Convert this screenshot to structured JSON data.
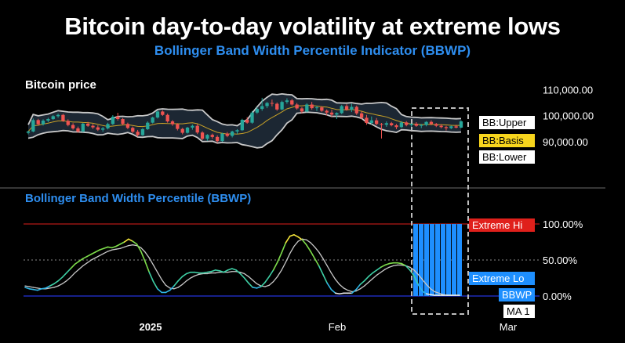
{
  "title": "Bitcoin day-to-day volatility at extreme lows",
  "subtitle": "Bollinger Band Width Percentile Indicator (BBWP)",
  "colors": {
    "background": "#000000",
    "subtitle": "#2e8ef0",
    "bull": "#26a69a",
    "bear": "#ef5350",
    "band_fill": "#1c2733",
    "band_line": "#c8c8c8",
    "basis": "#c9a227",
    "bbwp_panel_label": "#2e8ef0",
    "extreme_hi": "#e0201b",
    "extreme_lo": "#1e8fff",
    "bbwp_bar": "#1e8fff",
    "ma": "#c8c8c8",
    "divider": "#6b6b6b",
    "highlight_box": "#bdbdbd"
  },
  "chart_data": [
    {
      "type": "candlestick",
      "title": "Bitcoin price",
      "y_ticks": [
        "110,000.00",
        "100,000.00",
        "90,000.00"
      ],
      "ylim": [
        83000,
        112000
      ],
      "x_ticks": [
        "2025",
        "Feb",
        "Mar"
      ],
      "legend": [
        "BB:Upper",
        "BB:Basis",
        "BB:Lower"
      ],
      "series": [
        {
          "name": "Bitcoin price",
          "ohlc": [
            [
              93400,
              94200,
              92800,
              93900
            ],
            [
              93900,
              98900,
              93600,
              98300
            ],
            [
              98300,
              98800,
              96200,
              96700
            ],
            [
              96700,
              98600,
              96200,
              98100
            ],
            [
              98100,
              99200,
              97500,
              98700
            ],
            [
              98700,
              100200,
              98300,
              99800
            ],
            [
              99800,
              100800,
              99200,
              100300
            ],
            [
              100300,
              100700,
              97600,
              98000
            ],
            [
              98000,
              98600,
              95900,
              96400
            ],
            [
              96400,
              97100,
              94600,
              95100
            ],
            [
              95100,
              95800,
              93400,
              93900
            ],
            [
              93900,
              97200,
              93600,
              96900
            ],
            [
              96900,
              97600,
              95700,
              96100
            ],
            [
              96100,
              96800,
              94900,
              95500
            ],
            [
              95500,
              96300,
              94100,
              94600
            ],
            [
              94600,
              95700,
              93800,
              95100
            ],
            [
              95100,
              97300,
              94700,
              96800
            ],
            [
              96800,
              100200,
              96400,
              99600
            ],
            [
              99600,
              101100,
              98100,
              98700
            ],
            [
              98700,
              99100,
              96300,
              96800
            ],
            [
              96800,
              97300,
              94800,
              95300
            ],
            [
              95300,
              95800,
              93300,
              93800
            ],
            [
              93800,
              94500,
              91900,
              92500
            ],
            [
              92500,
              95200,
              92200,
              94800
            ],
            [
              94800,
              97800,
              94500,
              97300
            ],
            [
              97300,
              99600,
              97000,
              99300
            ],
            [
              99300,
              102000,
              98900,
              101600
            ],
            [
              101600,
              102100,
              99900,
              100300
            ],
            [
              100300,
              100800,
              97300,
              97800
            ],
            [
              97800,
              98300,
              96100,
              96700
            ],
            [
              96700,
              97100,
              94300,
              94900
            ],
            [
              94900,
              95300,
              92800,
              93400
            ],
            [
              93400,
              95700,
              93100,
              95400
            ],
            [
              95400,
              96600,
              94600,
              96100
            ],
            [
              96100,
              96700,
              92900,
              93500
            ],
            [
              93500,
              94000,
              90600,
              91100
            ],
            [
              91100,
              92900,
              90300,
              92600
            ],
            [
              92600,
              93100,
              91100,
              91800
            ],
            [
              91800,
              92400,
              89500,
              90200
            ],
            [
              90200,
              93400,
              89900,
              93100
            ],
            [
              93100,
              93700,
              91700,
              92200
            ],
            [
              92200,
              94200,
              91600,
              93900
            ],
            [
              93900,
              94800,
              92900,
              94400
            ],
            [
              94400,
              98800,
              94100,
              98400
            ],
            [
              98400,
              99400,
              96900,
              97300
            ],
            [
              97300,
              101800,
              96900,
              101200
            ],
            [
              101200,
              103300,
              100700,
              102600
            ],
            [
              102600,
              106900,
              101900,
              103700
            ],
            [
              103700,
              105300,
              102900,
              104900
            ],
            [
              104900,
              106200,
              103600,
              104600
            ],
            [
              104600,
              105100,
              101900,
              102400
            ],
            [
              102400,
              105800,
              102100,
              105300
            ],
            [
              105300,
              106700,
              104600,
              105900
            ],
            [
              105900,
              106400,
              103900,
              104300
            ],
            [
              104300,
              104900,
              102300,
              102800
            ],
            [
              102800,
              103300,
              100900,
              101600
            ],
            [
              101600,
              104800,
              101300,
              104300
            ],
            [
              104300,
              105300,
              102300,
              102900
            ],
            [
              102900,
              103800,
              101800,
              103200
            ],
            [
              103200,
              103700,
              101500,
              101900
            ],
            [
              101900,
              102400,
              100100,
              101200
            ],
            [
              101200,
              102300,
              99500,
              100400
            ],
            [
              100400,
              101300,
              98700,
              101000
            ],
            [
              101000,
              104200,
              100600,
              103700
            ],
            [
              103700,
              104400,
              101900,
              102300
            ],
            [
              102300,
              104600,
              101400,
              103400
            ],
            [
              103400,
              103900,
              100300,
              100900
            ],
            [
              100900,
              101700,
              98600,
              99200
            ],
            [
              99200,
              100300,
              96500,
              97200
            ],
            [
              97200,
              99700,
              96600,
              98200
            ],
            [
              98200,
              99100,
              96300,
              96800
            ],
            [
              96800,
              97200,
              91200,
              96500
            ],
            [
              96500,
              97800,
              95700,
              97100
            ],
            [
              97100,
              97600,
              95900,
              96300
            ],
            [
              96300,
              96800,
              94800,
              95600
            ],
            [
              95600,
              97900,
              95300,
              97400
            ],
            [
              97400,
              97900,
              95900,
              96400
            ],
            [
              96400,
              97300,
              95400,
              96900
            ],
            [
              96900,
              97500,
              95700,
              96100
            ],
            [
              96100,
              96800,
              95200,
              96400
            ],
            [
              96400,
              97900,
              95900,
              97600
            ],
            [
              97600,
              98200,
              96300,
              96800
            ],
            [
              96800,
              97200,
              95600,
              96100
            ],
            [
              96100,
              96700,
              95100,
              95600
            ],
            [
              95600,
              96100,
              94300,
              95200
            ],
            [
              95200,
              96200,
              94800,
              95900
            ],
            [
              95900,
              96500,
              95100,
              95400
            ],
            [
              95400,
              98200,
              95200,
              97800
            ]
          ]
        },
        {
          "name": "BB:Upper"
        },
        {
          "name": "BB:Basis"
        },
        {
          "name": "BB:Lower"
        }
      ]
    },
    {
      "type": "line",
      "title": "Bollinger Band Width Percentile (BBWP)",
      "ylim": [
        0,
        100
      ],
      "y_ticks": [
        "100.00%",
        "50.00%",
        "0.00%"
      ],
      "reference_lines": [
        {
          "label": "Extreme Hi",
          "value": 100
        },
        {
          "label": "Extreme Lo",
          "value": 0
        },
        {
          "value": 50
        }
      ],
      "series": [
        {
          "name": "BBWP",
          "values": [
            12,
            10,
            9,
            8,
            10,
            11,
            14,
            17,
            21,
            26,
            32,
            38,
            44,
            48,
            52,
            55,
            58,
            61,
            64,
            66,
            68,
            67,
            69,
            72,
            75,
            79,
            76,
            72,
            62,
            48,
            33,
            20,
            10,
            5,
            5,
            8,
            14,
            21,
            27,
            31,
            33,
            33,
            32,
            32,
            33,
            34,
            36,
            35,
            33,
            36,
            38,
            36,
            31,
            25,
            18,
            12,
            11,
            13,
            19,
            27,
            36,
            47,
            60,
            74,
            83,
            85,
            82,
            78,
            71,
            62,
            52,
            42,
            30,
            18,
            9,
            4,
            3,
            4,
            4,
            4,
            9,
            16,
            21,
            27,
            32,
            36,
            40,
            43,
            45,
            46,
            46,
            45,
            42,
            36,
            28,
            16,
            7,
            3,
            2,
            1,
            1,
            1,
            1,
            1,
            1,
            1
          ]
        },
        {
          "name": "MA 1",
          "values": [
            14,
            13,
            12,
            11,
            10,
            10,
            11,
            12,
            14,
            17,
            21,
            26,
            32,
            37,
            42,
            46,
            50,
            53,
            56,
            59,
            62,
            64,
            65,
            66,
            68,
            70,
            71,
            70,
            67,
            61,
            53,
            43,
            33,
            23,
            15,
            11,
            10,
            12,
            16,
            21,
            25,
            28,
            30,
            31,
            31,
            32,
            32,
            33,
            33,
            33,
            34,
            34,
            33,
            31,
            27,
            22,
            17,
            14,
            13,
            15,
            20,
            27,
            36,
            47,
            59,
            69,
            76,
            79,
            78,
            74,
            68,
            61,
            52,
            42,
            32,
            23,
            16,
            11,
            8,
            6,
            7,
            10,
            14,
            19,
            24,
            29,
            33,
            37,
            40,
            42,
            43,
            43,
            42,
            40,
            36,
            30,
            23,
            16,
            10,
            6,
            4,
            2,
            1,
            1,
            1,
            1
          ]
        }
      ],
      "legend": [
        "Extreme Hi",
        "Extreme Lo",
        "BBWP",
        "MA 1"
      ]
    }
  ]
}
